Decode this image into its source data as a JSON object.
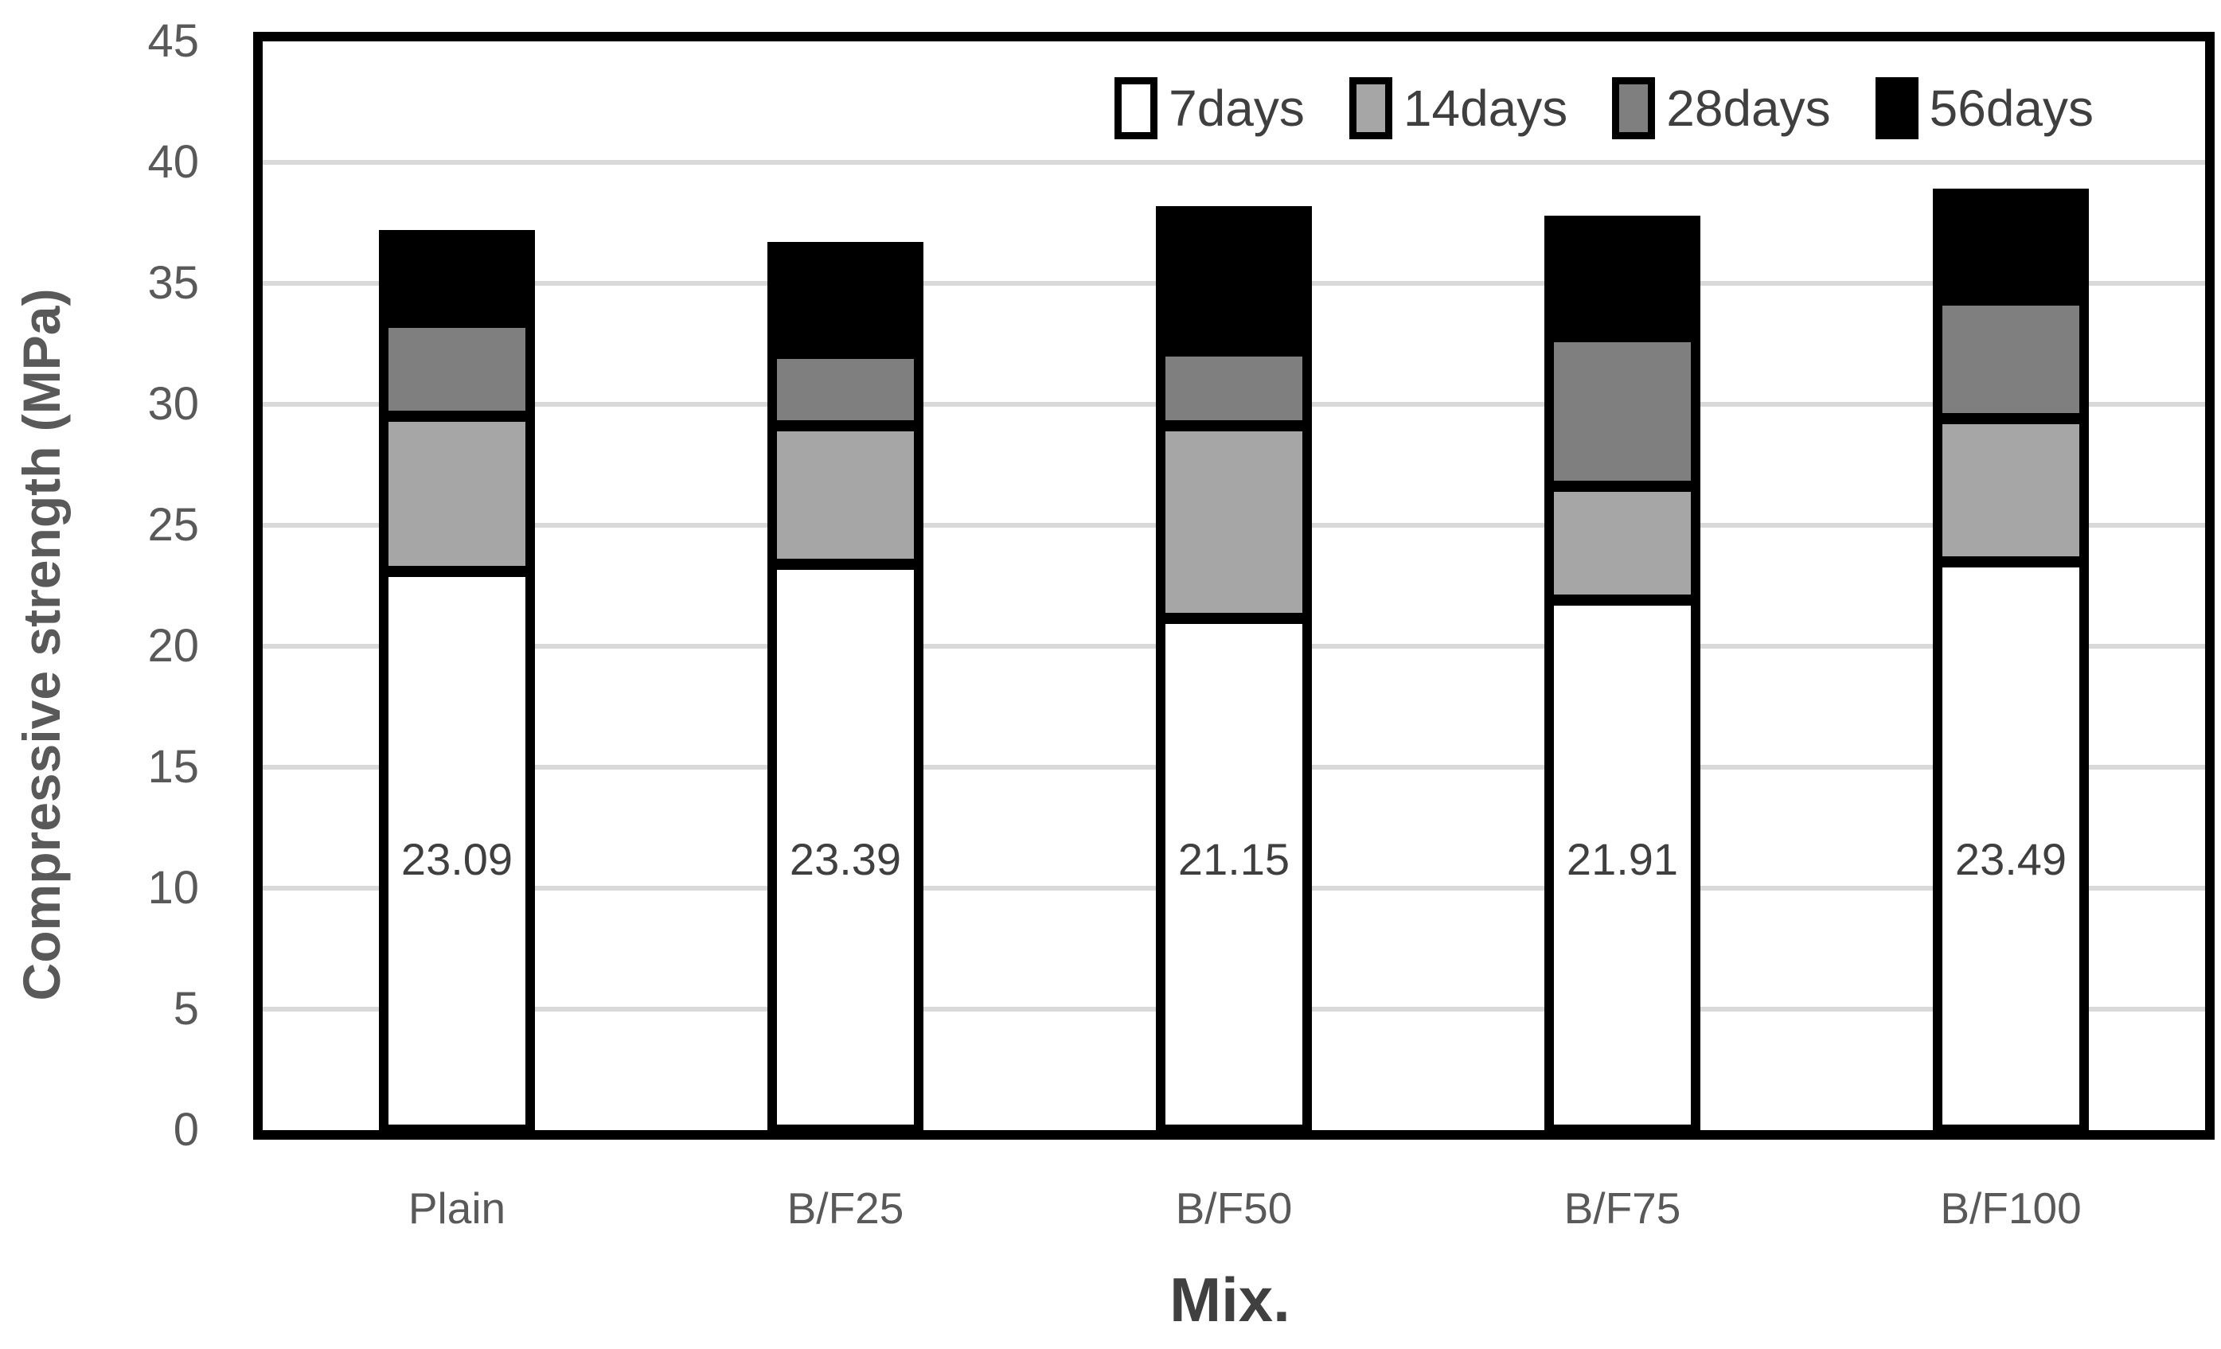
{
  "chart_data": {
    "type": "bar",
    "stacking": "stacked-cumulative",
    "title": "",
    "xlabel": "Mix.",
    "ylabel": "Compressive strength (MPa)",
    "categories": [
      "Plain",
      "B/F25",
      "B/F50",
      "B/F75",
      "B/F100"
    ],
    "series": [
      {
        "name": "7days",
        "color": "#FFFFFF",
        "cumulative_mpa": [
          23.09,
          23.39,
          21.15,
          21.91,
          23.49
        ]
      },
      {
        "name": "14days",
        "color": "#A6A6A6",
        "cumulative_mpa": [
          29.5,
          29.1,
          29.1,
          26.6,
          29.4
        ]
      },
      {
        "name": "28days",
        "color": "#7F7F7F",
        "cumulative_mpa": [
          33.4,
          32.1,
          32.2,
          32.8,
          34.3
        ]
      },
      {
        "name": "56days",
        "color": "#000000",
        "cumulative_mpa": [
          37.2,
          36.7,
          38.2,
          37.8,
          38.9
        ]
      }
    ],
    "bar_value_labels": [
      "23.09",
      "23.39",
      "21.15",
      "21.91",
      "23.49"
    ],
    "ylim": [
      0,
      45
    ],
    "ytick_step": 5,
    "yticks": [
      "45",
      "40",
      "35",
      "30",
      "25",
      "20",
      "15",
      "10",
      "5",
      "0"
    ],
    "grid": true,
    "legend_position": "top-right-inside"
  },
  "colors": {
    "background": "#FFFFFF",
    "plot_border": "#000000",
    "bar_border": "#000000",
    "gridline": "#D9D9D9",
    "tick_label": "#595959",
    "category_label": "#595959",
    "y_axis_title": "#595959",
    "x_axis_title": "#404040",
    "data_label": "#3F3F3F",
    "legend_text": "#3F3F3F"
  }
}
